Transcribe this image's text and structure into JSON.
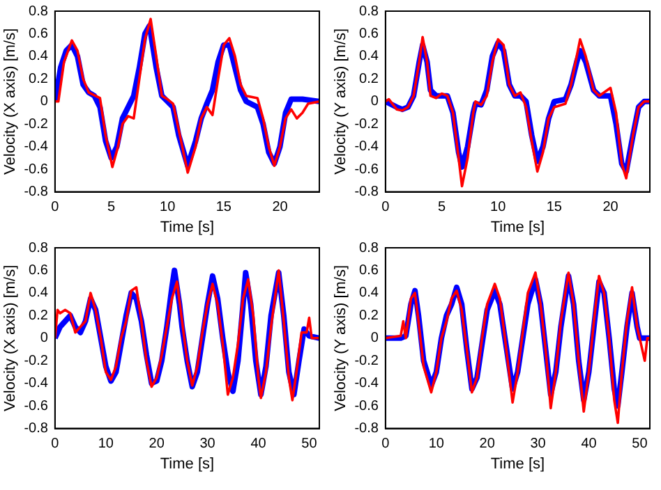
{
  "chart_data": [
    {
      "type": "line",
      "xlabel": "Time [s]",
      "ylabel": "Velocity (X axis) [m/s]",
      "xlim": [
        0,
        23.5
      ],
      "xticks": [
        0,
        5,
        10,
        15,
        20
      ],
      "ylim": [
        -0.8,
        0.8
      ],
      "yticks": [
        -0.8,
        -0.6,
        -0.4,
        -0.2,
        0,
        0.2,
        0.4,
        0.6,
        0.8
      ],
      "grid": false,
      "legend": false,
      "series": [
        {
          "color": "#0000ff",
          "x": [
            0,
            0.5,
            1,
            1.5,
            2,
            2.5,
            3,
            3.5,
            4,
            4.5,
            5,
            5.5,
            6,
            6.5,
            7,
            7.5,
            8,
            8.4,
            9,
            9.5,
            10,
            10.5,
            11,
            11.8,
            12.5,
            13,
            13.5,
            14,
            14.5,
            15,
            15.5,
            16,
            16.5,
            17,
            18,
            18.5,
            19,
            19.5,
            20,
            20.5,
            21,
            22,
            23.5
          ],
          "values": [
            0,
            0.3,
            0.45,
            0.5,
            0.4,
            0.15,
            0.08,
            0.05,
            -0.05,
            -0.35,
            -0.5,
            -0.4,
            -0.15,
            -0.05,
            0.05,
            0.3,
            0.6,
            0.67,
            0.3,
            0.05,
            0,
            -0.05,
            -0.3,
            -0.57,
            -0.35,
            -0.15,
            -0.02,
            0.1,
            0.35,
            0.5,
            0.5,
            0.3,
            0.1,
            0,
            -0.05,
            -0.2,
            -0.45,
            -0.55,
            -0.4,
            -0.1,
            0.02,
            0.02,
            0
          ]
        },
        {
          "color": "#ff0000",
          "x": [
            0,
            0.3,
            0.8,
            1.5,
            2,
            2.5,
            3,
            4,
            4.5,
            5.1,
            5.6,
            6,
            6.5,
            7,
            7.5,
            8,
            8.5,
            9,
            9.5,
            10,
            10.5,
            11,
            11.8,
            12.5,
            13,
            13.5,
            14,
            14.5,
            15,
            15.5,
            16,
            16.5,
            17,
            18,
            18.5,
            19,
            19.5,
            20,
            20.5,
            21,
            21.5,
            22,
            22.5,
            23.5
          ],
          "values": [
            0,
            0,
            0.35,
            0.54,
            0.45,
            0.2,
            0.08,
            0.03,
            -0.3,
            -0.58,
            -0.4,
            -0.2,
            -0.13,
            -0.15,
            0.2,
            0.55,
            0.73,
            0.4,
            0.05,
            0.02,
            -0.02,
            -0.25,
            -0.63,
            -0.4,
            -0.15,
            -0.05,
            -0.12,
            0.2,
            0.5,
            0.56,
            0.4,
            0.15,
            0.05,
            0.03,
            -0.15,
            -0.4,
            -0.57,
            -0.4,
            -0.15,
            -0.07,
            -0.15,
            -0.1,
            -0.02,
            0
          ]
        }
      ]
    },
    {
      "type": "line",
      "xlabel": "Time [s]",
      "ylabel": "Velocity (Y axis) [m/s]",
      "xlim": [
        0,
        23.5
      ],
      "xticks": [
        0,
        5,
        10,
        15,
        20
      ],
      "ylim": [
        -0.8,
        0.8
      ],
      "yticks": [
        -0.8,
        -0.6,
        -0.4,
        -0.2,
        0,
        0.2,
        0.4,
        0.6,
        0.8
      ],
      "grid": false,
      "legend": false,
      "series": [
        {
          "color": "#0000ff",
          "x": [
            0,
            1,
            1.5,
            2,
            2.5,
            3,
            3.3,
            3.7,
            4,
            4.5,
            5,
            5.5,
            6,
            6.5,
            6.8,
            7.3,
            7.8,
            8,
            8.5,
            9,
            9.5,
            10,
            10.5,
            11,
            11.5,
            12,
            12.5,
            13,
            13.5,
            14,
            14.5,
            15,
            16,
            16.5,
            17,
            17.3,
            17.8,
            18.5,
            19,
            20,
            20.5,
            21,
            21.4,
            22,
            22.5,
            23,
            23.5
          ],
          "values": [
            0,
            -0.05,
            -0.07,
            -0.05,
            0.05,
            0.35,
            0.5,
            0.35,
            0.1,
            0.05,
            0.05,
            0.05,
            -0.1,
            -0.45,
            -0.58,
            -0.4,
            -0.1,
            -0.02,
            -0.03,
            0.1,
            0.4,
            0.52,
            0.45,
            0.15,
            0.05,
            0.05,
            0,
            -0.3,
            -0.53,
            -0.4,
            -0.15,
            0,
            0.02,
            0.15,
            0.35,
            0.45,
            0.35,
            0.1,
            0.05,
            0.05,
            -0.2,
            -0.55,
            -0.62,
            -0.3,
            -0.05,
            0,
            0
          ]
        },
        {
          "color": "#ff0000",
          "x": [
            0,
            0.3,
            1,
            1.5,
            2,
            2.5,
            3,
            3.3,
            3.7,
            4,
            4.5,
            5,
            5.5,
            6,
            6.5,
            6.8,
            7.3,
            7.8,
            8,
            8.5,
            9,
            9.5,
            10,
            10.5,
            11,
            11.5,
            12,
            12.5,
            13,
            13.5,
            14,
            14.5,
            15,
            16,
            16.5,
            17,
            17.3,
            17.8,
            18.5,
            19,
            20,
            20.5,
            21,
            21.4,
            22,
            22.5,
            23,
            23.5
          ],
          "values": [
            0,
            0.02,
            -0.07,
            -0.08,
            -0.05,
            0.05,
            0.35,
            0.57,
            0.35,
            0.05,
            0.03,
            0.07,
            0.05,
            -0.1,
            -0.5,
            -0.75,
            -0.5,
            -0.1,
            0,
            -0.03,
            0.05,
            0.35,
            0.55,
            0.5,
            0.15,
            0.05,
            0.08,
            -0.05,
            -0.35,
            -0.62,
            -0.45,
            -0.15,
            -0.05,
            -0.02,
            0.15,
            0.4,
            0.55,
            0.4,
            0.1,
            0.05,
            0.12,
            -0.1,
            -0.55,
            -0.68,
            -0.3,
            -0.05,
            0,
            0
          ]
        }
      ]
    },
    {
      "type": "line",
      "xlabel": "Time [s]",
      "ylabel": "Velocity (X axis) [m/s]",
      "xlim": [
        0,
        52
      ],
      "xticks": [
        0,
        10,
        20,
        30,
        40,
        50
      ],
      "ylim": [
        -0.8,
        0.8
      ],
      "yticks": [
        -0.8,
        -0.6,
        -0.4,
        -0.2,
        0,
        0.2,
        0.4,
        0.6,
        0.8
      ],
      "grid": false,
      "legend": false,
      "series": [
        {
          "color": "#0000ff",
          "x": [
            0,
            1,
            2,
            3,
            4,
            5,
            6,
            7,
            8,
            9,
            10,
            11,
            12,
            13,
            14,
            15,
            16,
            17,
            18,
            19,
            20,
            21,
            22,
            23,
            23.5,
            24.5,
            25,
            26,
            27,
            28,
            29,
            30,
            31,
            32,
            33,
            34,
            35,
            36,
            37,
            37.5,
            38.5,
            39.5,
            40.5,
            41.5,
            42.5,
            44,
            45,
            46,
            47,
            48,
            49,
            50,
            52
          ],
          "values": [
            0,
            0.1,
            0.15,
            0.2,
            0.1,
            0.05,
            0.15,
            0.35,
            0.25,
            0,
            -0.25,
            -0.38,
            -0.3,
            -0.05,
            0.2,
            0.4,
            0.35,
            0.15,
            -0.15,
            -0.4,
            -0.38,
            -0.2,
            0.1,
            0.45,
            0.6,
            0.3,
            0.1,
            -0.2,
            -0.43,
            -0.3,
            0,
            0.3,
            0.55,
            0.35,
            0,
            -0.3,
            -0.47,
            -0.2,
            0.3,
            0.58,
            0.3,
            -0.2,
            -0.5,
            -0.25,
            0.2,
            0.58,
            0.2,
            -0.3,
            -0.5,
            -0.2,
            0.08,
            0.02,
            0
          ]
        },
        {
          "color": "#ff0000",
          "x": [
            0,
            0.5,
            1,
            2,
            3,
            4,
            5,
            6,
            7,
            8,
            9,
            10,
            11,
            12,
            13,
            14,
            15,
            16,
            17,
            18,
            19,
            20,
            21,
            22,
            23,
            24,
            25,
            26,
            27,
            28,
            29,
            30,
            31,
            32,
            33,
            34,
            35,
            36,
            37,
            38,
            39,
            40,
            40.5,
            41.5,
            42.5,
            44,
            45,
            46,
            46.7,
            47.5,
            48.5,
            49.5,
            50,
            50.5,
            52
          ],
          "values": [
            0,
            0.25,
            0.22,
            0.25,
            0.22,
            0.05,
            0.1,
            0.15,
            0.4,
            0.25,
            0,
            -0.3,
            -0.37,
            -0.25,
            0,
            0.15,
            0.42,
            0.45,
            0.15,
            -0.2,
            -0.43,
            -0.35,
            -0.15,
            0.1,
            0.35,
            0.5,
            0.15,
            -0.2,
            -0.42,
            -0.25,
            0.05,
            0.3,
            0.48,
            0.3,
            -0.05,
            -0.5,
            -0.35,
            -0.05,
            0.35,
            0.52,
            0.2,
            -0.35,
            -0.53,
            -0.3,
            0.1,
            0.6,
            0.15,
            -0.35,
            -0.55,
            -0.3,
            0.05,
            0.05,
            0.18,
            0,
            0
          ]
        }
      ]
    },
    {
      "type": "line",
      "xlabel": "Time [s]",
      "ylabel": "Velocity (Y axis) [m/s]",
      "xlim": [
        0,
        52
      ],
      "xticks": [
        0,
        10,
        20,
        30,
        40,
        50
      ],
      "ylim": [
        -0.8,
        0.8
      ],
      "yticks": [
        -0.8,
        -0.6,
        -0.4,
        -0.2,
        0,
        0.2,
        0.4,
        0.6,
        0.8
      ],
      "grid": false,
      "legend": false,
      "series": [
        {
          "color": "#0000ff",
          "x": [
            0,
            3,
            4,
            5,
            5.8,
            6.5,
            7.5,
            9,
            10,
            11,
            12,
            13,
            14,
            15,
            16,
            17,
            18,
            19,
            20,
            21.5,
            22.5,
            23.5,
            25,
            26,
            27,
            28,
            29.5,
            30.5,
            31.5,
            32.5,
            33.5,
            34.5,
            36,
            37,
            38,
            39,
            40,
            41,
            42,
            43,
            44,
            45,
            45.7,
            46.5,
            47.5,
            48.5,
            49.5,
            50,
            52
          ],
          "values": [
            0,
            0,
            0.02,
            0.3,
            0.42,
            0.2,
            -0.2,
            -0.42,
            -0.3,
            0,
            0.2,
            0.3,
            0.45,
            0.3,
            -0.1,
            -0.45,
            -0.35,
            -0.05,
            0.25,
            0.42,
            0.3,
            0,
            -0.45,
            -0.3,
            0,
            0.3,
            0.52,
            0.3,
            -0.1,
            -0.5,
            -0.3,
            0.1,
            0.55,
            0.3,
            -0.2,
            -0.55,
            -0.3,
            0.1,
            0.5,
            0.4,
            0,
            -0.45,
            -0.6,
            -0.3,
            0.1,
            0.4,
            0.1,
            0,
            0
          ]
        },
        {
          "color": "#ff0000",
          "x": [
            0,
            3,
            3.5,
            4,
            5,
            5.8,
            6.5,
            7.5,
            9,
            10,
            11,
            12,
            13,
            14,
            15,
            16,
            17,
            18,
            19,
            20,
            21.5,
            22.5,
            23.5,
            25,
            26,
            27,
            28,
            29.5,
            30.5,
            31.5,
            32.5,
            33.5,
            34.5,
            36,
            37,
            38,
            39,
            40,
            41,
            42,
            43,
            44,
            45,
            45.7,
            46.5,
            47.5,
            48.5,
            49.5,
            50,
            51,
            51.5,
            52
          ],
          "values": [
            0,
            0.02,
            0.15,
            0,
            0.35,
            0.4,
            0.15,
            -0.25,
            -0.48,
            -0.3,
            0,
            0.15,
            0.35,
            0.42,
            0.25,
            -0.1,
            -0.48,
            -0.35,
            0,
            0.3,
            0.48,
            0.35,
            0,
            -0.57,
            -0.3,
            0.05,
            0.4,
            0.58,
            0.3,
            -0.1,
            -0.62,
            -0.3,
            0.15,
            0.58,
            0.3,
            -0.2,
            -0.65,
            -0.3,
            0.15,
            0.55,
            0.4,
            0,
            -0.55,
            -0.75,
            -0.3,
            0.15,
            0.45,
            0.1,
            0,
            -0.2,
            0,
            0
          ]
        }
      ]
    }
  ]
}
